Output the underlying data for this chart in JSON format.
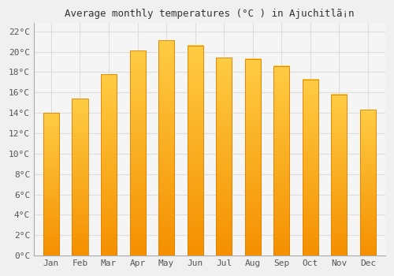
{
  "title": "Average monthly temperatures (°C ) in Ajuchitlã¡n",
  "months": [
    "Jan",
    "Feb",
    "Mar",
    "Apr",
    "May",
    "Jun",
    "Jul",
    "Aug",
    "Sep",
    "Oct",
    "Nov",
    "Dec"
  ],
  "values": [
    14.0,
    15.4,
    17.8,
    20.1,
    21.1,
    20.6,
    19.4,
    19.3,
    18.6,
    17.3,
    15.8,
    14.3
  ],
  "bar_color_top": "#FFCC44",
  "bar_color_bottom": "#F59000",
  "bar_edge_color": "#E08000",
  "background_color": "#F0F0F0",
  "plot_bg_color": "#F5F5F5",
  "grid_color": "#DDDDDD",
  "ytick_labels": [
    "0°C",
    "2°C",
    "4°C",
    "6°C",
    "8°C",
    "10°C",
    "12°C",
    "14°C",
    "16°C",
    "18°C",
    "20°C",
    "22°C"
  ],
  "ytick_values": [
    0,
    2,
    4,
    6,
    8,
    10,
    12,
    14,
    16,
    18,
    20,
    22
  ],
  "ylim": [
    0,
    22.8
  ],
  "title_fontsize": 9,
  "tick_fontsize": 8,
  "font_family": "monospace",
  "bar_width": 0.55
}
